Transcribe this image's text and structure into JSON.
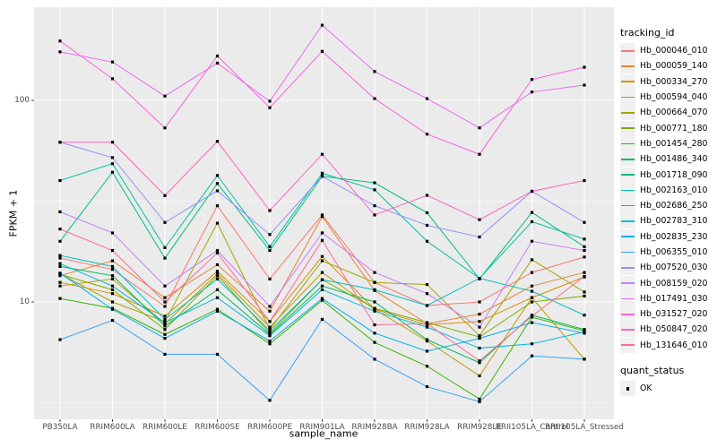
{
  "chart_data": {
    "type": "line",
    "title": "",
    "xlabel": "sample_name",
    "ylabel": "FPKM + 1",
    "y_scale": "log10",
    "ylim": [
      2.6,
      290
    ],
    "grid": "on",
    "legend_position": "right",
    "panel_bg": "#EBEBEB",
    "grid_color": "#FFFFFF",
    "point_color": "#000000",
    "yticks": [
      {
        "label": "100",
        "value": 100
      },
      {
        "label": "10",
        "value": 10
      }
    ],
    "y_minor": [
      3.162,
      31.62
    ],
    "categories": [
      "PB350LA",
      "RRIM600LA",
      "RRIM600LE",
      "RRIM600SE",
      "RRIM600PE",
      "RRIM901LA",
      "RRIM928BA",
      "RRIM928LA",
      "RRIM928LE",
      "RRII105LA_Control",
      "RRII105LA_Stressed"
    ],
    "series": [
      {
        "name": "Hb_000046_010",
        "color": "#F8766D",
        "values": [
          16.5,
          14.5,
          9.5,
          30,
          13,
          27,
          12.5,
          9.6,
          10,
          14,
          16.7
        ]
      },
      {
        "name": "Hb_000059_140",
        "color": "#EA8331",
        "values": [
          13.5,
          16,
          10.5,
          15.3,
          9,
          26.5,
          11.4,
          7.8,
          8.7,
          12,
          14
        ]
      },
      {
        "name": "Hb_000334_270",
        "color": "#D89000",
        "values": [
          12.5,
          11,
          8.5,
          14.2,
          8,
          16.8,
          9.2,
          7.7,
          8,
          10.5,
          13.3
        ]
      },
      {
        "name": "Hb_000594_040",
        "color": "#C09B00",
        "values": [
          12,
          13,
          7.8,
          13.8,
          7.5,
          14,
          9.2,
          6.4,
          4.3,
          10.5,
          5.2
        ]
      },
      {
        "name": "Hb_000664_070",
        "color": "#A3A500",
        "values": [
          13.8,
          10,
          8,
          24.6,
          7.3,
          16,
          12.5,
          12.2,
          6.8,
          16.2,
          11.2
        ]
      },
      {
        "name": "Hb_000771_180",
        "color": "#7CAE00",
        "values": [
          13.7,
          11.5,
          7.3,
          13.5,
          7,
          12.9,
          9.3,
          7.9,
          6.7,
          10,
          10.7
        ]
      },
      {
        "name": "Hb_001454_280",
        "color": "#39B600",
        "values": [
          10.4,
          9.3,
          6.9,
          9.2,
          6.2,
          10.2,
          6.3,
          4.8,
          3.3,
          8.4,
          7.2
        ]
      },
      {
        "name": "Hb_001486_340",
        "color": "#00BB4E",
        "values": [
          15,
          13.5,
          7.6,
          11.5,
          6.9,
          12,
          10,
          6.5,
          5,
          8.6,
          7.3
        ]
      },
      {
        "name": "Hb_001718_090",
        "color": "#00BF7D",
        "values": [
          20,
          44,
          16.5,
          38.7,
          18,
          42,
          39,
          27.7,
          13,
          27.8,
          18.8
        ]
      },
      {
        "name": "Hb_002163_010",
        "color": "#00C1A3",
        "values": [
          40,
          48.5,
          18.6,
          42.4,
          18.8,
          43.5,
          36,
          20,
          13.1,
          25,
          20.5
        ]
      },
      {
        "name": "Hb_002686_250",
        "color": "#00BFC4",
        "values": [
          17,
          15,
          8.2,
          13,
          7.2,
          12.9,
          11.5,
          9.6,
          13.1,
          11.3,
          8.6
        ]
      },
      {
        "name": "Hb_002783_310",
        "color": "#00BAE0",
        "values": [
          15.5,
          12,
          7.9,
          10.5,
          6.8,
          11.5,
          9,
          7.5,
          5.9,
          6.2,
          7.1
        ]
      },
      {
        "name": "Hb_002835_230",
        "color": "#00B0F6",
        "values": [
          13.9,
          9.2,
          6.6,
          9,
          6.4,
          10.4,
          7.0,
          5.7,
          6.6,
          7.9,
          7.0
        ]
      },
      {
        "name": "Hb_006355_010",
        "color": "#35A2FF",
        "values": [
          6.5,
          8.1,
          5.5,
          5.5,
          3.25,
          8.2,
          5.2,
          3.8,
          3.2,
          5.4,
          5.2
        ]
      },
      {
        "name": "Hb_007520_030",
        "color": "#9590FF",
        "values": [
          62,
          52,
          24.8,
          35.6,
          21.6,
          42,
          30,
          24,
          21,
          35.4,
          24.8
        ]
      },
      {
        "name": "Hb_008159_020",
        "color": "#C77CFF",
        "values": [
          28,
          22,
          12,
          18,
          9.5,
          22,
          14,
          11,
          7.5,
          20,
          18
        ]
      },
      {
        "name": "Hb_017491_030",
        "color": "#E76BF3",
        "values": [
          174,
          155,
          105,
          153,
          99,
          236,
          139,
          102,
          73,
          110,
          119
        ]
      },
      {
        "name": "Hb_031527_020",
        "color": "#FA62DB",
        "values": [
          197,
          128,
          73,
          166,
          92,
          175,
          102,
          68,
          54,
          127,
          146
        ]
      },
      {
        "name": "Hb_050847_020",
        "color": "#FF62BC",
        "values": [
          62,
          62,
          33.7,
          62.6,
          28.4,
          54,
          27,
          33.8,
          25.6,
          35.4,
          40
        ]
      },
      {
        "name": "Hb_131646_010",
        "color": "#FF6A98",
        "values": [
          23,
          18,
          10,
          17.5,
          8,
          20.2,
          7.7,
          7.8,
          5.1,
          8.5,
          13.4
        ]
      }
    ],
    "legend": {
      "tracking_title": "tracking_id",
      "quant_title": "quant_status",
      "quant_ok_label": "OK"
    }
  }
}
